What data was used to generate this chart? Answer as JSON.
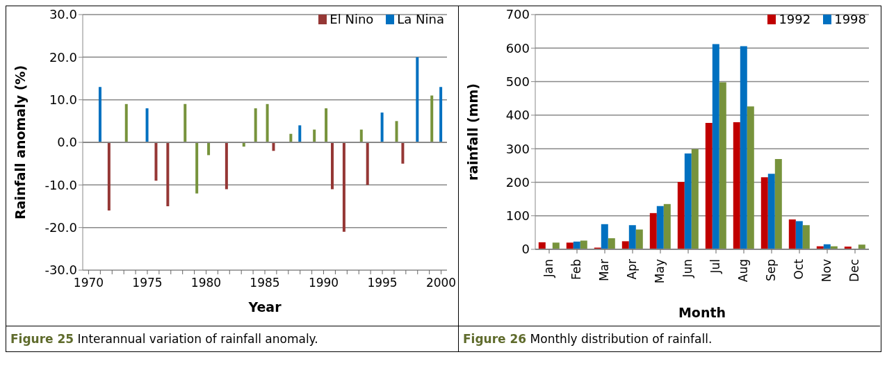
{
  "chart_data": [
    {
      "type": "bar",
      "title": null,
      "xlabel": "Year",
      "ylabel": "Rainfall anomaly (%)",
      "annotations": [
        "Figure 25 Interannual variation of rainfall anomaly."
      ],
      "categories": [
        "1970",
        null,
        null,
        null,
        null,
        "1975",
        null,
        null,
        null,
        null,
        "1980",
        null,
        null,
        null,
        null,
        "1985",
        null,
        null,
        null,
        null,
        "1990",
        null,
        null,
        null,
        null,
        "1995",
        null,
        null,
        null,
        null,
        "2000"
      ],
      "series": [
        {
          "name": "El Nino",
          "color": "#953735",
          "values": [
            null,
            null,
            -16,
            null,
            null,
            null,
            -9,
            -15,
            null,
            null,
            null,
            null,
            -11,
            null,
            null,
            null,
            -2,
            null,
            null,
            null,
            null,
            -11,
            -21,
            null,
            -10,
            null,
            null,
            -5,
            null,
            null,
            null
          ]
        },
        {
          "name": "La Nina",
          "color": "#0070c0",
          "values": [
            null,
            13,
            null,
            null,
            null,
            8,
            null,
            null,
            null,
            null,
            null,
            null,
            null,
            null,
            null,
            null,
            null,
            null,
            4,
            null,
            null,
            null,
            null,
            null,
            null,
            7,
            null,
            null,
            20,
            null,
            13
          ]
        },
        {
          "color": "#77933c",
          "values": [
            null,
            null,
            null,
            9,
            null,
            null,
            null,
            null,
            9,
            -12,
            -3,
            null,
            null,
            -1,
            8,
            9,
            null,
            2,
            null,
            3,
            8,
            null,
            null,
            3,
            null,
            null,
            5,
            null,
            null,
            11,
            null
          ]
        }
      ],
      "ylim": [
        -30,
        30
      ],
      "yticks": [
        {
          "value": -30,
          "label": "-30.0"
        },
        {
          "value": -20,
          "label": "-20.0"
        },
        {
          "value": -10,
          "label": "-10.0"
        },
        {
          "value": 0,
          "label": "0.0"
        },
        {
          "value": 10,
          "label": "10.0"
        },
        {
          "value": 20,
          "label": "20.0"
        },
        {
          "value": 30,
          "label": "30.0"
        }
      ],
      "grid": "y",
      "legend": "top right"
    },
    {
      "type": "bar",
      "title": null,
      "xlabel": "Month",
      "ylabel": "rainfall (mm)",
      "annotations": [
        "Figure 26 Monthly distribution of rainfall."
      ],
      "categories": [
        "Jan",
        "Feb",
        "Mar",
        "Apr",
        "May",
        "Jun",
        "Jul",
        "Aug",
        "Sep",
        "Oct",
        "Nov",
        "Dec"
      ],
      "series": [
        {
          "name": "1992",
          "color": "#c00000",
          "values": [
            21,
            20,
            5,
            24,
            108,
            201,
            377,
            379,
            215,
            89,
            9,
            8
          ]
        },
        {
          "name": "1998",
          "color": "#0070c0",
          "values": [
            2,
            23,
            75,
            72,
            129,
            286,
            612,
            606,
            225,
            84,
            15,
            null
          ]
        },
        {
          "color": "#77933c",
          "values": [
            20,
            26,
            33,
            59,
            135,
            299,
            498,
            426,
            269,
            72,
            9,
            14
          ]
        }
      ],
      "ylim": [
        0,
        700
      ],
      "yticks": [
        0,
        100,
        200,
        300,
        400,
        500,
        600,
        700
      ],
      "grid": "y",
      "legend": "top right"
    }
  ]
}
